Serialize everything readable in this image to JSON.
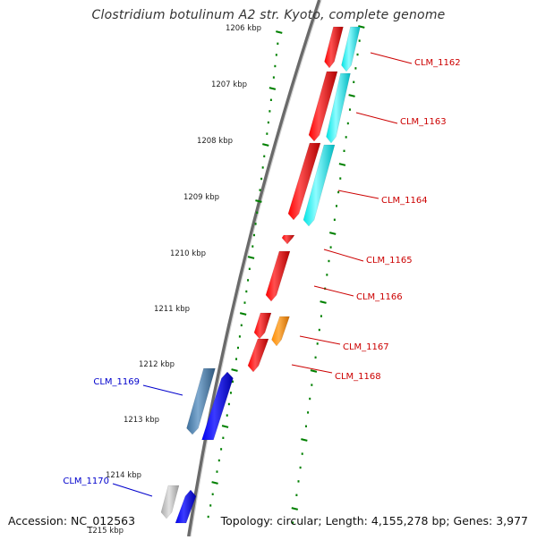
{
  "title": "Clostridium botulinum A2 str. Kyoto, complete genome",
  "footer": {
    "accession": "Accession: NC_012563",
    "summary": "Topology: circular; Length: 4,155,278 bp; Genes: 3,977"
  },
  "colors": {
    "backbone": "#888888",
    "ruler_ticks": "#008000",
    "gene_red": "#ff0000",
    "gene_cyan": "#00ffff",
    "gene_orange": "#ff8c00",
    "gene_blue": "#0000ff",
    "gene_steelblue": "#4682b4",
    "gene_gray": "#bdbdbd",
    "label_red": "#cc0000",
    "label_blue": "#0000cc"
  },
  "ruler_labels": [
    "1206 kbp",
    "1207 kbp",
    "1208 kbp",
    "1209 kbp",
    "1210 kbp",
    "1211 kbp",
    "1212 kbp",
    "1213 kbp",
    "1214 kbp",
    "1215 kbp"
  ],
  "gene_labels": [
    {
      "name": "CLM_1162",
      "color": "red"
    },
    {
      "name": "CLM_1163",
      "color": "red"
    },
    {
      "name": "CLM_1164",
      "color": "red"
    },
    {
      "name": "CLM_1165",
      "color": "red"
    },
    {
      "name": "CLM_1166",
      "color": "red"
    },
    {
      "name": "CLM_1167",
      "color": "red"
    },
    {
      "name": "CLM_1168",
      "color": "red"
    },
    {
      "name": "CLM_1169",
      "color": "blue"
    },
    {
      "name": "CLM_1170",
      "color": "blue"
    }
  ]
}
